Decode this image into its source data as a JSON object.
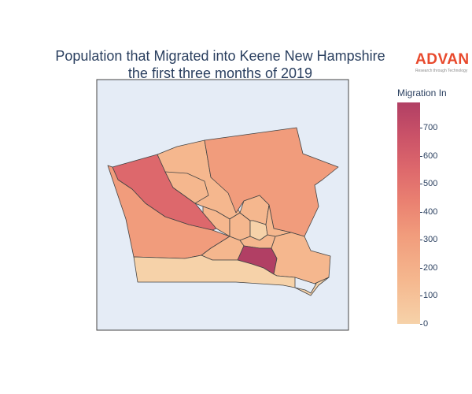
{
  "title_line1": "Population that Migrated into Keene New Hampshire",
  "title_line2": "the first three months of 2019",
  "logo": {
    "name": "ADVAN",
    "tagline": "Research through Technology",
    "color": "#e8492c"
  },
  "colorbar": {
    "title": "Migration In",
    "min": 0,
    "max": 790,
    "ticks": [
      "700",
      "600",
      "500",
      "400",
      "300",
      "200",
      "100",
      "0"
    ],
    "colors": [
      "#f6d2a9",
      "#f5b78e",
      "#f19c7c",
      "#ea8171",
      "#dd686c",
      "#ca5268",
      "#b13f64"
    ]
  },
  "map_background": "#e5ecf6",
  "regions": [
    {
      "name": "west-large",
      "value": 230
    },
    {
      "name": "northwest",
      "value": 520
    },
    {
      "name": "north-center",
      "value": 190
    },
    {
      "name": "north-small",
      "value": 70
    },
    {
      "name": "northeast",
      "value": 210
    },
    {
      "name": "center-west",
      "value": 80
    },
    {
      "name": "center-1",
      "value": 90
    },
    {
      "name": "center-2",
      "value": 160
    },
    {
      "name": "center-3",
      "value": 60
    },
    {
      "name": "center-4",
      "value": 110
    },
    {
      "name": "center-5",
      "value": 140
    },
    {
      "name": "south-center",
      "value": 180
    },
    {
      "name": "hotspot",
      "value": 770
    },
    {
      "name": "southeast",
      "value": 90
    },
    {
      "name": "south",
      "value": 60
    }
  ]
}
